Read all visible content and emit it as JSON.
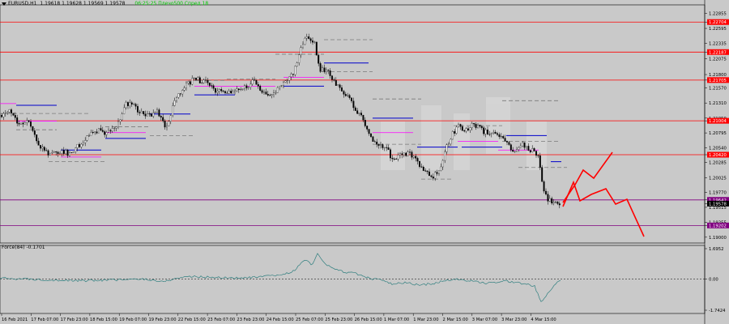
{
  "header": {
    "symbol_timeframe": "EURUSD,H1",
    "ohlc": "1.19618 1.19628 1.19569 1.19578",
    "status": "06:25:25 Плечо500 Спред 18"
  },
  "indicator": {
    "title": "Force(84) -0.1701",
    "scale_labels": [
      "1.6952",
      "0.00",
      "-1.7424"
    ]
  },
  "price_axis": {
    "labels": [
      {
        "value": "1.22855",
        "type": "tick"
      },
      {
        "value": "1.22704",
        "type": "line"
      },
      {
        "value": "1.22595",
        "type": "tick"
      },
      {
        "value": "1.22335",
        "type": "tick"
      },
      {
        "value": "1.22187",
        "type": "line"
      },
      {
        "value": "1.22075",
        "type": "tick"
      },
      {
        "value": "1.21800",
        "type": "tick"
      },
      {
        "value": "1.21705",
        "type": "line"
      },
      {
        "value": "1.21570",
        "type": "tick"
      },
      {
        "value": "1.21310",
        "type": "tick"
      },
      {
        "value": "1.21050",
        "type": "tick"
      },
      {
        "value": "1.21004",
        "type": "line"
      },
      {
        "value": "1.20795",
        "type": "tick"
      },
      {
        "value": "1.20540",
        "type": "tick"
      },
      {
        "value": "1.20420",
        "type": "line"
      },
      {
        "value": "1.20285",
        "type": "tick"
      },
      {
        "value": "1.20025",
        "type": "tick"
      },
      {
        "value": "1.19770",
        "type": "tick"
      },
      {
        "value": "1.19642",
        "type": "pline"
      },
      {
        "value": "1.19578",
        "type": "cur"
      },
      {
        "value": "1.19515",
        "type": "tick"
      },
      {
        "value": "1.19255",
        "type": "tick"
      },
      {
        "value": "1.19202",
        "type": "pline"
      },
      {
        "value": "1.19000",
        "type": "tick"
      }
    ],
    "line_color": "#ff0000",
    "purple_line_color": "#800080"
  },
  "time_axis": {
    "labels": [
      "16 Feb 2021",
      "17 Feb 07:00",
      "17 Feb 23:00",
      "18 Feb 15:00",
      "19 Feb 07:00",
      "19 Feb 23:00",
      "22 Feb 15:00",
      "23 Feb 07:00",
      "23 Feb 23:00",
      "24 Feb 15:00",
      "25 Feb 07:00",
      "25 Feb 23:00",
      "26 Feb 15:00",
      "1 Mar 07:00",
      "1 Mar 23:00",
      "2 Mar 15:00",
      "3 Mar 07:00",
      "3 Mar 23:00",
      "4 Mar 15:00"
    ]
  },
  "colors": {
    "background": "#c9c9c9",
    "candle": "#000000",
    "level_line": "#ff0000",
    "forecast_line": "#ff0000",
    "indicator_line": "#2f7f7f",
    "blue_segment": "#0000cc",
    "magenta_segment": "#ff00ff"
  }
}
